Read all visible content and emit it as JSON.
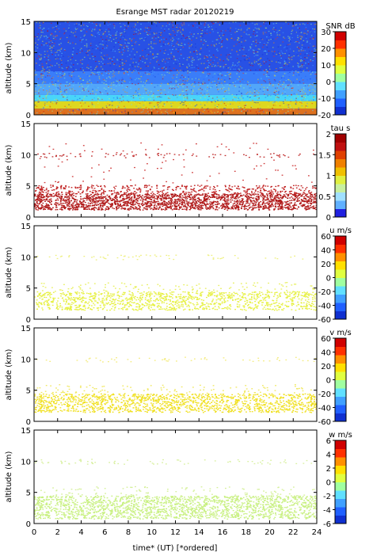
{
  "figure": {
    "title": "Esrange MST radar 20120219",
    "xlabel": "time* (UT)   [*ordered]",
    "x_ticks": [
      "0",
      "2",
      "4",
      "6",
      "8",
      "10",
      "12",
      "14",
      "16",
      "18",
      "20",
      "22",
      "24"
    ]
  },
  "chart_data": [
    {
      "type": "heatmap",
      "ylabel": "altitude (km)",
      "xlim": [
        0,
        24
      ],
      "ylim": [
        0,
        15
      ],
      "y_ticks": [
        "0",
        "5",
        "10",
        "15"
      ],
      "colorbar": {
        "label": "SNR dB",
        "ticks": [
          "30",
          "20",
          "10",
          "0",
          "-10",
          "-20"
        ],
        "range": [
          -20,
          30
        ]
      },
      "background_color": "#1e3fd8",
      "layers": [
        {
          "ymin": 0.0,
          "ymax": 1.0,
          "value": 18,
          "color": "#ff7a00"
        },
        {
          "ymin": 1.0,
          "ymax": 2.2,
          "value": 10,
          "color": "#fff200"
        },
        {
          "ymin": 2.2,
          "ymax": 3.2,
          "value": 0,
          "color": "#50f0ff"
        },
        {
          "ymin": 3.2,
          "ymax": 5.0,
          "value": -7,
          "color": "#5cb8ff"
        },
        {
          "ymin": 5.0,
          "ymax": 7.0,
          "value": -11,
          "color": "#3f88ff"
        },
        {
          "ymin": 7.0,
          "ymax": 15.0,
          "value": -15,
          "color": "#2a55e8"
        }
      ]
    },
    {
      "type": "scatter",
      "ylabel": "altitude (km)",
      "xlim": [
        0,
        24
      ],
      "ylim": [
        0,
        15
      ],
      "y_ticks": [
        "0",
        "5",
        "10",
        "15"
      ],
      "colorbar": {
        "label": "tau s",
        "ticks": [
          "2",
          "1.5",
          "1",
          "0.5",
          "0"
        ],
        "range": [
          0,
          2
        ]
      },
      "bands": [
        {
          "ymin": 1.2,
          "ymax": 3.8,
          "density": 0.92,
          "color": "#b01818"
        },
        {
          "ymin": 3.8,
          "ymax": 5.2,
          "density": 0.35,
          "color": "#c02020"
        },
        {
          "ymin": 9.6,
          "ymax": 10.3,
          "density": 0.12,
          "color": "#c03030"
        },
        {
          "ymin": 5.5,
          "ymax": 12.0,
          "density": 0.015,
          "color": "#d04040"
        }
      ]
    },
    {
      "type": "scatter",
      "ylabel": "altitude (km)",
      "xlim": [
        0,
        24
      ],
      "ylim": [
        0,
        15
      ],
      "y_ticks": [
        "0",
        "5",
        "10",
        "15"
      ],
      "colorbar": {
        "label": "u m/s",
        "ticks": [
          "60",
          "40",
          "20",
          "0",
          "-20",
          "-40",
          "-60"
        ],
        "range": [
          -60,
          60
        ]
      },
      "bands": [
        {
          "ymin": 1.5,
          "ymax": 4.5,
          "density": 0.45,
          "color": "#e6f040"
        },
        {
          "ymin": 4.5,
          "ymax": 6.0,
          "density": 0.08,
          "color": "#e8f060"
        },
        {
          "ymin": 9.6,
          "ymax": 10.4,
          "density": 0.08,
          "color": "#eef080"
        }
      ]
    },
    {
      "type": "scatter",
      "ylabel": "altitude (km)",
      "xlim": [
        0,
        24
      ],
      "ylim": [
        0,
        15
      ],
      "y_ticks": [
        "0",
        "5",
        "10",
        "15"
      ],
      "colorbar": {
        "label": "v m/s",
        "ticks": [
          "60",
          "40",
          "20",
          "0",
          "-20",
          "-40",
          "-60"
        ],
        "range": [
          -60,
          60
        ]
      },
      "bands": [
        {
          "ymin": 1.5,
          "ymax": 4.5,
          "density": 0.55,
          "color": "#f0e020"
        },
        {
          "ymin": 4.5,
          "ymax": 6.0,
          "density": 0.08,
          "color": "#f0e860"
        },
        {
          "ymin": 9.6,
          "ymax": 10.4,
          "density": 0.08,
          "color": "#f4ec80"
        }
      ]
    },
    {
      "type": "scatter",
      "ylabel": "altitude (km)",
      "xlim": [
        0,
        24
      ],
      "ylim": [
        0,
        15
      ],
      "y_ticks": [
        "0",
        "5",
        "10",
        "15"
      ],
      "colorbar": {
        "label": "w m/s",
        "ticks": [
          "6",
          "4",
          "2",
          "0",
          "-2",
          "-4",
          "-6"
        ],
        "range": [
          -6,
          6
        ]
      },
      "bands": [
        {
          "ymin": 0.8,
          "ymax": 4.5,
          "density": 0.6,
          "color": "#c8f080"
        },
        {
          "ymin": 4.5,
          "ymax": 6.0,
          "density": 0.08,
          "color": "#d4f098"
        },
        {
          "ymin": 9.6,
          "ymax": 10.4,
          "density": 0.1,
          "color": "#d8f0a0"
        }
      ]
    }
  ],
  "colormaps": {
    "jet": [
      "#1030d0",
      "#2060ff",
      "#40a0ff",
      "#60e0ff",
      "#a0ffa0",
      "#e0ff40",
      "#ffe000",
      "#ff9000",
      "#ff3000",
      "#d00000"
    ],
    "tau": [
      "#2020e0",
      "#60b0ff",
      "#a0e0ff",
      "#c8f0a0",
      "#e0f040",
      "#f0c000",
      "#f08000",
      "#e04000",
      "#c01010",
      "#a00000"
    ]
  }
}
